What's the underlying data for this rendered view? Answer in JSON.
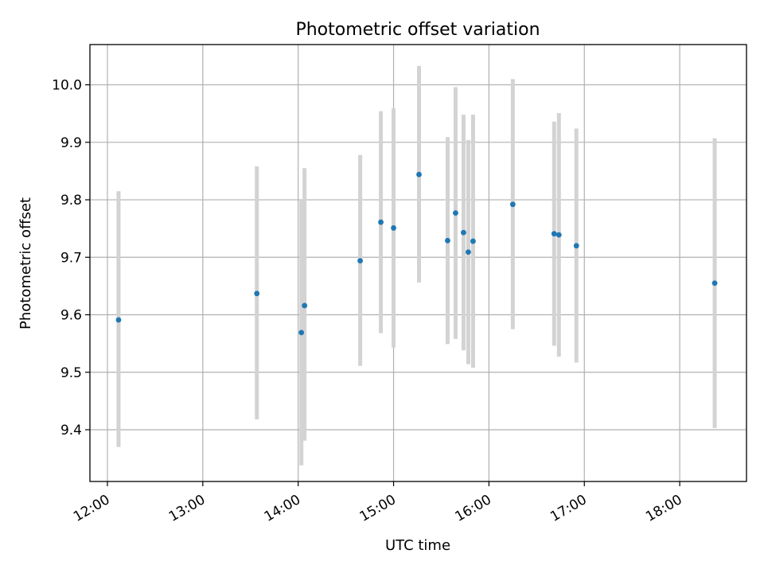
{
  "chart_data": {
    "type": "scatter",
    "title": "Photometric offset variation",
    "xlabel": "UTC time",
    "ylabel": "Photometric offset",
    "x_ticks": [
      "12:00",
      "13:00",
      "14:00",
      "15:00",
      "16:00",
      "17:00",
      "18:00"
    ],
    "y_ticks": [
      "9.4",
      "9.5",
      "9.6",
      "9.7",
      "9.8",
      "9.9",
      "10.0"
    ],
    "xlim": [
      "11:49",
      "18:42"
    ],
    "ylim": [
      9.31,
      10.07
    ],
    "grid": true,
    "colors": {
      "point": "#1f77b4",
      "errorbar": "#d3d3d3"
    },
    "series": [
      {
        "points": [
          {
            "x": "12:07",
            "y": 9.591,
            "low": 9.37,
            "high": 9.815
          },
          {
            "x": "13:34",
            "y": 9.637,
            "low": 9.418,
            "high": 9.858
          },
          {
            "x": "14:02",
            "y": 9.569,
            "low": 9.338,
            "high": 9.8
          },
          {
            "x": "14:04",
            "y": 9.616,
            "low": 9.381,
            "high": 9.855
          },
          {
            "x": "14:39",
            "y": 9.694,
            "low": 9.511,
            "high": 9.878
          },
          {
            "x": "14:52",
            "y": 9.761,
            "low": 9.568,
            "high": 9.954
          },
          {
            "x": "15:00",
            "y": 9.751,
            "low": 9.543,
            "high": 9.959
          },
          {
            "x": "15:16",
            "y": 9.844,
            "low": 9.656,
            "high": 10.033
          },
          {
            "x": "15:34",
            "y": 9.729,
            "low": 9.549,
            "high": 9.909
          },
          {
            "x": "15:39",
            "y": 9.777,
            "low": 9.558,
            "high": 9.996
          },
          {
            "x": "15:44",
            "y": 9.743,
            "low": 9.538,
            "high": 9.948
          },
          {
            "x": "15:47",
            "y": 9.709,
            "low": 9.514,
            "high": 9.904
          },
          {
            "x": "15:50",
            "y": 9.728,
            "low": 9.508,
            "high": 9.948
          },
          {
            "x": "16:15",
            "y": 9.792,
            "low": 9.575,
            "high": 10.01
          },
          {
            "x": "16:41",
            "y": 9.741,
            "low": 9.546,
            "high": 9.936
          },
          {
            "x": "16:44",
            "y": 9.739,
            "low": 9.527,
            "high": 9.951
          },
          {
            "x": "16:55",
            "y": 9.72,
            "low": 9.517,
            "high": 9.924
          },
          {
            "x": "18:22",
            "y": 9.655,
            "low": 9.403,
            "high": 9.907
          }
        ]
      }
    ]
  }
}
